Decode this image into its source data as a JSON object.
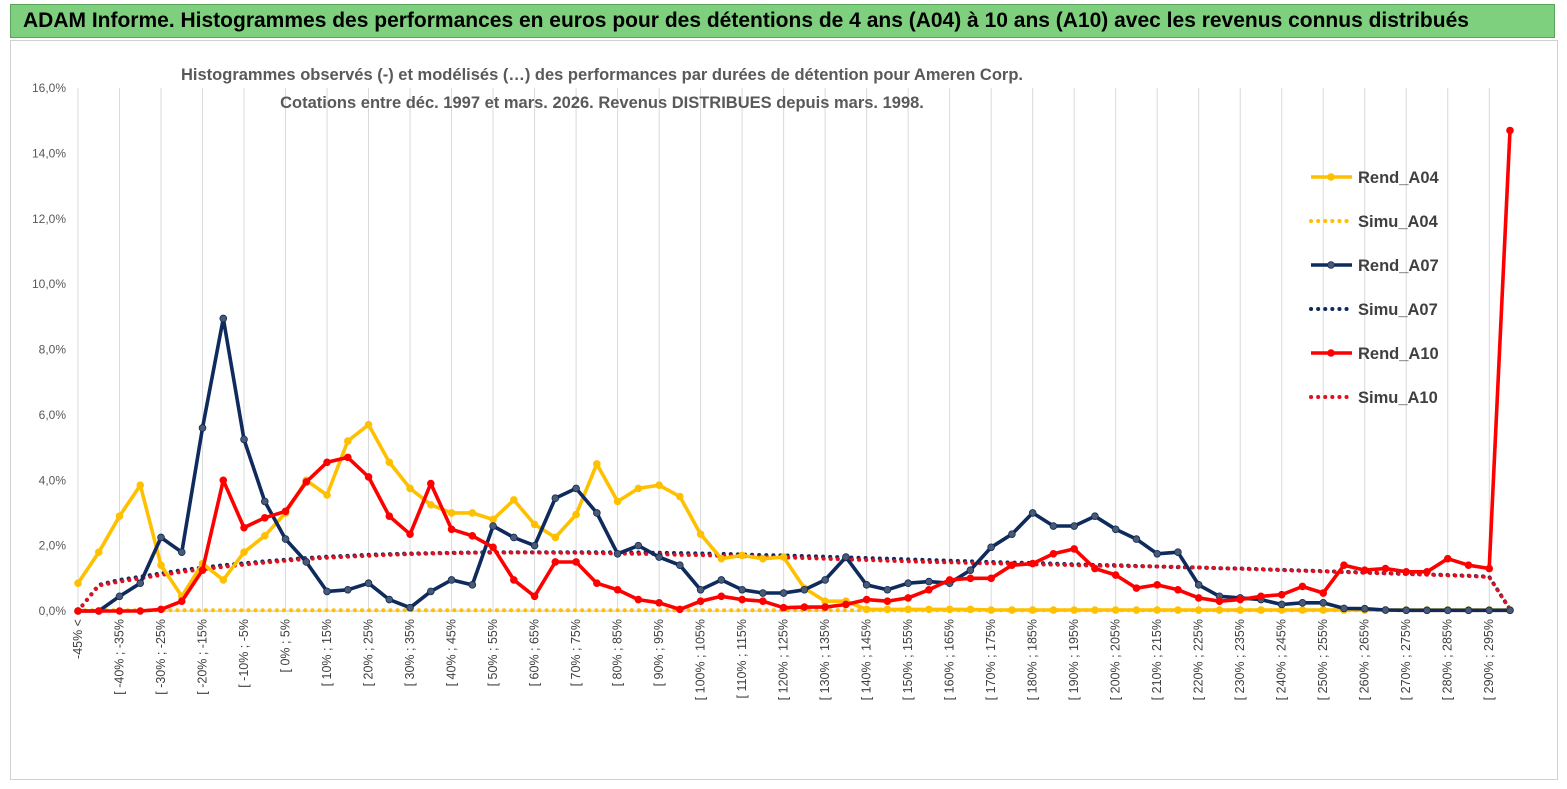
{
  "header": {
    "banner_text": "ADAM Informe. Histogrammes des performances en euros pour des détentions de 4 ans (A04) à 10 ans (A10) avec les revenus connus distribués"
  },
  "chart_data": {
    "type": "line",
    "title_line1": "Histogrammes observés (-) et modélisés (…) des performances par durées de détention pour Ameren Corp.",
    "title_line2": "Cotations entre déc. 1997 et mars. 2026. Revenus DISTRIBUES depuis mars. 1998.",
    "ylim": [
      0,
      16
    ],
    "y_ticks": [
      "0,0%",
      "2,0%",
      "4,0%",
      "6,0%",
      "8,0%",
      "10,0%",
      "12,0%",
      "14,0%",
      "16,0%"
    ],
    "x_tick_labels": [
      "-45% <",
      "[ -40% ; -35%",
      "[ -30% ; -25%",
      "[ -20% ; -15%",
      "[ -10% ; -5%",
      "[ 0% ; 5%",
      "[ 10% ; 15%",
      "[ 20% ; 25%",
      "[ 30% ; 35%",
      "[ 40% ; 45%",
      "[ 50% ; 55%",
      "[ 60% ; 65%",
      "[ 70% ; 75%",
      "[ 80% ; 85%",
      "[ 90% ; 95%",
      "[ 100% ; 105%",
      "[ 110% ; 115%",
      "[ 120% ; 125%",
      "[ 130% ; 135%",
      "[ 140% ; 145%",
      "[ 150% ; 155%",
      "[ 160% ; 165%",
      "[ 170% ; 175%",
      "[ 180% ; 185%",
      "[ 190% ; 195%",
      "[ 200% ; 205%",
      "[ 210% ; 215%",
      "[ 220% ; 225%",
      "[ 230% ; 235%",
      "[ 240% ; 245%",
      "[ 250% ; 255%",
      "[ 260% ; 265%",
      "[ 270% ; 275%",
      "[ 280% ; 285%",
      "[ 290% ; 295%"
    ],
    "n_points": 70,
    "legend_position": "right",
    "series": [
      {
        "name": "Rend_A04",
        "style": "solid",
        "marker": true,
        "color": "#ffc000",
        "values": [
          0.85,
          1.8,
          2.9,
          3.85,
          1.4,
          0.45,
          1.45,
          0.95,
          1.8,
          2.3,
          3.0,
          4.0,
          3.55,
          5.2,
          5.7,
          4.55,
          3.75,
          3.25,
          3.0,
          3.0,
          2.8,
          3.4,
          2.65,
          2.25,
          2.95,
          4.5,
          3.35,
          3.75,
          3.85,
          3.5,
          2.35,
          1.6,
          1.7,
          1.6,
          1.65,
          0.7,
          0.3,
          0.3,
          0.05,
          0.05,
          0.05,
          0.05,
          0.05,
          0.05,
          0.03,
          0.03,
          0.03,
          0.03,
          0.03,
          0.03,
          0.03,
          0.03,
          0.03,
          0.03,
          0.03,
          0.03,
          0.03,
          0.03,
          0.03,
          0.03,
          0.03,
          0.03,
          0.03,
          0.03,
          0.03,
          0.03,
          0.03,
          0.03,
          0.03,
          0.03
        ]
      },
      {
        "name": "Simu_A04",
        "style": "dotted",
        "marker": false,
        "color": "#ffc000",
        "values": [
          0.02,
          0.02,
          0.02,
          0.02,
          0.02,
          0.02,
          0.02,
          0.02,
          0.02,
          0.02,
          0.02,
          0.02,
          0.02,
          0.02,
          0.02,
          0.02,
          0.02,
          0.02,
          0.02,
          0.02,
          0.02,
          0.02,
          0.02,
          0.02,
          0.02,
          0.02,
          0.02,
          0.02,
          0.02,
          0.02,
          0.02,
          0.02,
          0.02,
          0.02,
          0.02,
          0.02,
          0.02,
          0.02,
          0.02,
          0.02,
          0.02,
          0.02,
          0.02,
          0.02,
          0.02,
          0.02,
          0.02,
          0.02,
          0.02,
          0.02,
          0.02,
          0.02,
          0.02,
          0.02,
          0.02,
          0.02,
          0.02,
          0.02,
          0.02,
          0.02,
          0.02,
          0.02,
          0.02,
          0.02,
          0.02,
          0.02,
          0.02,
          0.02,
          0.02,
          0.02
        ]
      },
      {
        "name": "Rend_A07",
        "style": "solid",
        "marker": true,
        "color": "#0f2a5c",
        "values": [
          0.0,
          0.0,
          0.45,
          0.85,
          2.25,
          1.8,
          5.6,
          8.95,
          5.25,
          3.35,
          2.2,
          1.5,
          0.6,
          0.65,
          0.85,
          0.35,
          0.1,
          0.6,
          0.95,
          0.8,
          2.6,
          2.25,
          2.0,
          3.45,
          3.75,
          3.0,
          1.75,
          2.0,
          1.65,
          1.4,
          0.65,
          0.95,
          0.65,
          0.55,
          0.55,
          0.65,
          0.95,
          1.65,
          0.8,
          0.65,
          0.85,
          0.9,
          0.85,
          1.25,
          1.95,
          2.35,
          3.0,
          2.6,
          2.6,
          2.9,
          2.5,
          2.2,
          1.75,
          1.8,
          0.8,
          0.45,
          0.4,
          0.35,
          0.2,
          0.25,
          0.25,
          0.08,
          0.07,
          0.03,
          0.02,
          0.02,
          0.02,
          0.02,
          0.02,
          0.02
        ]
      },
      {
        "name": "Simu_A07",
        "style": "dotted",
        "marker": false,
        "color": "#0f2a5c",
        "values": [
          0.0,
          0.8,
          0.95,
          1.05,
          1.15,
          1.25,
          1.33,
          1.4,
          1.46,
          1.52,
          1.57,
          1.62,
          1.66,
          1.69,
          1.72,
          1.74,
          1.76,
          1.77,
          1.78,
          1.79,
          1.8,
          1.8,
          1.8,
          1.8,
          1.8,
          1.8,
          1.79,
          1.79,
          1.78,
          1.77,
          1.76,
          1.75,
          1.73,
          1.71,
          1.7,
          1.68,
          1.66,
          1.64,
          1.62,
          1.6,
          1.58,
          1.56,
          1.54,
          1.52,
          1.5,
          1.48,
          1.47,
          1.45,
          1.43,
          1.41,
          1.4,
          1.38,
          1.36,
          1.34,
          1.33,
          1.31,
          1.3,
          1.28,
          1.26,
          1.24,
          1.22,
          1.2,
          1.18,
          1.16,
          1.14,
          1.12,
          1.1,
          1.08,
          1.05,
          0.05
        ]
      },
      {
        "name": "Rend_A10",
        "style": "solid",
        "marker": true,
        "color": "#ff0000",
        "values": [
          0.0,
          0.0,
          0.0,
          0.0,
          0.05,
          0.3,
          1.25,
          4.0,
          2.55,
          2.85,
          3.05,
          3.95,
          4.55,
          4.7,
          4.1,
          2.9,
          2.35,
          3.9,
          2.5,
          2.3,
          1.95,
          0.95,
          0.45,
          1.5,
          1.5,
          0.85,
          0.65,
          0.35,
          0.25,
          0.05,
          0.3,
          0.45,
          0.35,
          0.3,
          0.1,
          0.12,
          0.12,
          0.2,
          0.35,
          0.3,
          0.4,
          0.65,
          0.95,
          1.0,
          1.0,
          1.4,
          1.45,
          1.75,
          1.9,
          1.3,
          1.1,
          0.7,
          0.8,
          0.65,
          0.4,
          0.3,
          0.35,
          0.45,
          0.5,
          0.75,
          0.55,
          1.4,
          1.25,
          1.3,
          1.2,
          1.2,
          1.6,
          1.4,
          1.3,
          14.7
        ]
      },
      {
        "name": "Simu_A10",
        "style": "dotted",
        "marker": false,
        "color": "#e0101e",
        "values": [
          0.0,
          0.78,
          0.9,
          1.0,
          1.1,
          1.2,
          1.28,
          1.35,
          1.42,
          1.48,
          1.54,
          1.59,
          1.63,
          1.66,
          1.69,
          1.72,
          1.74,
          1.76,
          1.77,
          1.78,
          1.78,
          1.79,
          1.79,
          1.78,
          1.78,
          1.77,
          1.76,
          1.75,
          1.74,
          1.72,
          1.71,
          1.69,
          1.68,
          1.66,
          1.64,
          1.62,
          1.6,
          1.58,
          1.56,
          1.54,
          1.52,
          1.5,
          1.49,
          1.47,
          1.46,
          1.44,
          1.43,
          1.42,
          1.4,
          1.39,
          1.38,
          1.37,
          1.36,
          1.35,
          1.33,
          1.31,
          1.29,
          1.27,
          1.25,
          1.23,
          1.21,
          1.19,
          1.17,
          1.15,
          1.13,
          1.11,
          1.09,
          1.07,
          1.04,
          0.05
        ]
      }
    ]
  }
}
